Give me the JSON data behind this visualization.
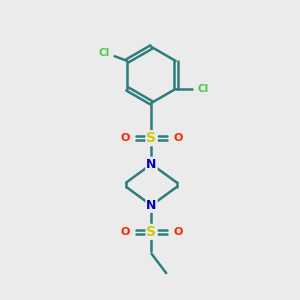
{
  "background_color": "#ebebeb",
  "bond_color": "#2d7d7d",
  "S_color": "#cccc00",
  "O_color": "#ff2200",
  "N_color": "#0000cc",
  "Cl_color": "#44cc44",
  "line_width": 1.8,
  "fig_size": [
    3.0,
    3.0
  ],
  "dpi": 100,
  "xlim": [
    0,
    10
  ],
  "ylim": [
    0,
    10
  ]
}
